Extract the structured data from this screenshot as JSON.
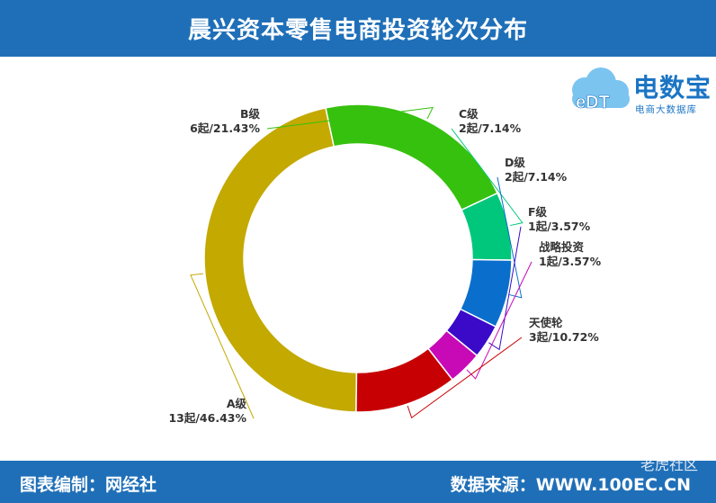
{
  "header": {
    "title": "晨兴资本零售电商投资轮次分布"
  },
  "logo": {
    "brand": "电数宝",
    "tagline": "电商大数据库",
    "badge": "eDT"
  },
  "footer": {
    "left": "图表编制：网经社",
    "right": "数据来源：WWW.100EC.CN"
  },
  "watermark": "老虎社区",
  "colors": {
    "header": "#1f6fb8",
    "brand": "#1a74c4"
  },
  "chart_data": {
    "type": "pie",
    "donut": true,
    "title": "晨兴资本零售电商投资轮次分布",
    "categories": [
      "A级",
      "B级",
      "C级",
      "D级",
      "F级",
      "战略投资",
      "天使轮"
    ],
    "values": [
      13,
      6,
      2,
      2,
      1,
      1,
      3
    ],
    "percent_labels": [
      "13起/46.43%",
      "6起/21.43%",
      "2起/7.14%",
      "2起/7.14%",
      "1起/3.57%",
      "1起/3.57%",
      "3起/10.72%"
    ],
    "colors": [
      "#c3a900",
      "#36c10e",
      "#00c77b",
      "#0a6fcc",
      "#3a0ac8",
      "#c70ab6",
      "#c70003"
    ],
    "legend": "none"
  }
}
